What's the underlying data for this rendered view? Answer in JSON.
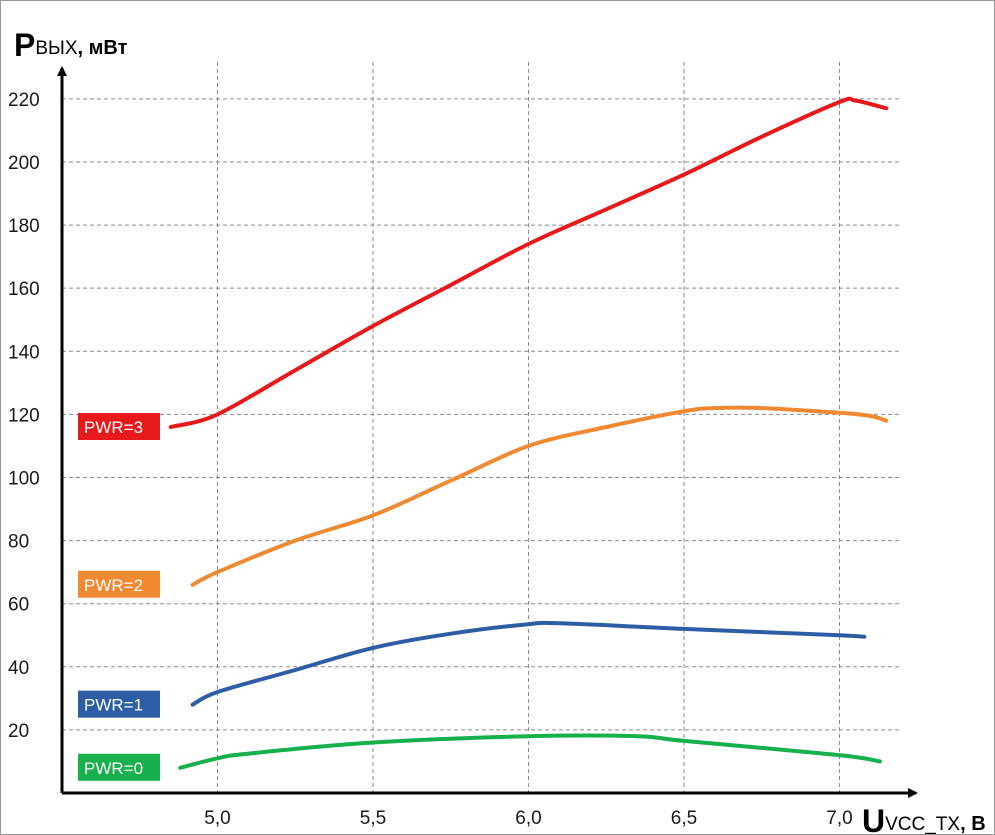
{
  "chart_data": {
    "type": "line",
    "title": "",
    "ylabel": {
      "main": "P",
      "sub": "ВЫХ",
      "unit": ", мВт"
    },
    "xlabel": {
      "main": "U",
      "sub": "VCC_TX",
      "unit": ", В"
    },
    "xlim": [
      4.5,
      7.5
    ],
    "ylim": [
      0,
      245
    ],
    "x_ticks": [
      "5,0",
      "5,5",
      "6,0",
      "6,5",
      "7,0"
    ],
    "x_tick_values": [
      5.0,
      5.5,
      6.0,
      6.5,
      7.0
    ],
    "y_ticks": [
      "20",
      "40",
      "60",
      "80",
      "100",
      "120",
      "140",
      "160",
      "180",
      "200",
      "220"
    ],
    "y_tick_values": [
      20,
      40,
      60,
      80,
      100,
      120,
      140,
      160,
      180,
      200,
      220
    ],
    "grid": true,
    "legend": "left, labels next to curves",
    "series": [
      {
        "name": "PWR=3",
        "color": "#e8191b",
        "points": [
          [
            4.85,
            116
          ],
          [
            5.0,
            120
          ],
          [
            5.25,
            134
          ],
          [
            5.5,
            148
          ],
          [
            5.75,
            161
          ],
          [
            6.0,
            174
          ],
          [
            6.25,
            185
          ],
          [
            6.5,
            196
          ],
          [
            6.75,
            208
          ],
          [
            7.0,
            219
          ],
          [
            7.05,
            219.5
          ],
          [
            7.15,
            217
          ]
        ]
      },
      {
        "name": "PWR=2",
        "color": "#f08a32",
        "points": [
          [
            4.92,
            66
          ],
          [
            5.0,
            70
          ],
          [
            5.25,
            80
          ],
          [
            5.5,
            88
          ],
          [
            5.75,
            99
          ],
          [
            6.0,
            110
          ],
          [
            6.25,
            116
          ],
          [
            6.5,
            121
          ],
          [
            6.6,
            122
          ],
          [
            6.75,
            122
          ],
          [
            7.0,
            120.5
          ],
          [
            7.1,
            119.5
          ],
          [
            7.15,
            118
          ]
        ]
      },
      {
        "name": "PWR=1",
        "color": "#2d5ea5",
        "points": [
          [
            4.92,
            28
          ],
          [
            5.0,
            32
          ],
          [
            5.25,
            39
          ],
          [
            5.5,
            46
          ],
          [
            5.75,
            50.5
          ],
          [
            6.0,
            53.5
          ],
          [
            6.1,
            53.8
          ],
          [
            6.5,
            52
          ],
          [
            7.0,
            50
          ],
          [
            7.08,
            49.5
          ]
        ]
      },
      {
        "name": "PWR=0",
        "color": "#16b04c",
        "points": [
          [
            4.88,
            8
          ],
          [
            5.0,
            11
          ],
          [
            5.1,
            12.5
          ],
          [
            5.5,
            16
          ],
          [
            6.0,
            18
          ],
          [
            6.35,
            18
          ],
          [
            6.5,
            16.5
          ],
          [
            7.0,
            12
          ],
          [
            7.13,
            10
          ]
        ]
      }
    ]
  }
}
